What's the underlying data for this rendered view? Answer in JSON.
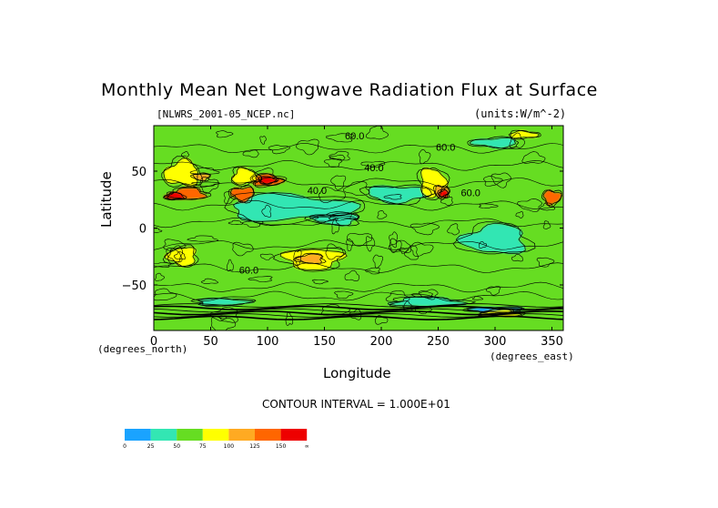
{
  "title": "Monthly Mean Net Longwave Radiation Flux at Surface",
  "file_label": "[NLWRS_2001-05_NCEP.nc]",
  "units_label": "(units:W/m^-2)",
  "contour_interval": "CONTOUR INTERVAL = 1.000E+01",
  "chart_data": {
    "type": "heatmap",
    "title": "Monthly Mean Net Longwave Radiation Flux at Surface",
    "xlabel": "Longitude",
    "ylabel": "Latitude",
    "x_unit_label": "(degrees_east)",
    "y_unit_label": "(degrees_north)",
    "xlim": [
      0,
      360
    ],
    "ylim": [
      -90,
      90
    ],
    "x_ticks": [
      0,
      50,
      100,
      150,
      200,
      250,
      300,
      350
    ],
    "x_tick_labels": [
      "0",
      "50",
      "100",
      "150",
      "200",
      "250",
      "300",
      "350"
    ],
    "y_ticks": [
      50,
      0,
      -50
    ],
    "y_tick_labels": [
      "50",
      "0",
      "−50"
    ],
    "contour_labels": [
      {
        "text": "60.0",
        "lon": 168,
        "lat": 78
      },
      {
        "text": "60.0",
        "lon": 248,
        "lat": 68
      },
      {
        "text": "40.0",
        "lon": 185,
        "lat": 50
      },
      {
        "text": "40.0",
        "lon": 135,
        "lat": 30
      },
      {
        "text": "60.0",
        "lon": 75,
        "lat": -40
      },
      {
        "text": "60.0",
        "lon": 270,
        "lat": 28
      }
    ],
    "colorbar": {
      "levels": [
        "0",
        "25",
        "50",
        "75",
        "100",
        "125",
        "150",
        "∞"
      ],
      "colors": [
        "#1aa3ff",
        "#33e6b3",
        "#66dd22",
        "#ffff00",
        "#ffaa22",
        "#ff6600",
        "#ee0000"
      ]
    },
    "field_regions": [
      {
        "kind": "background",
        "value": 55,
        "color": "#66dd22"
      },
      {
        "kind": "blob",
        "lon": 120,
        "lat": 18,
        "w": 110,
        "h": 22,
        "value": 35,
        "color": "#33e6b3"
      },
      {
        "kind": "blob",
        "lon": 215,
        "lat": 30,
        "w": 55,
        "h": 14,
        "value": 35,
        "color": "#33e6b3"
      },
      {
        "kind": "blob",
        "lon": 160,
        "lat": 8,
        "w": 40,
        "h": 10,
        "value": 35,
        "color": "#33e6b3"
      },
      {
        "kind": "blob",
        "lon": 300,
        "lat": -10,
        "w": 55,
        "h": 25,
        "value": 35,
        "color": "#33e6b3"
      },
      {
        "kind": "blob",
        "lon": 240,
        "lat": -65,
        "w": 60,
        "h": 8,
        "value": 35,
        "color": "#33e6b3"
      },
      {
        "kind": "blob",
        "lon": 60,
        "lat": -65,
        "w": 45,
        "h": 6,
        "value": 35,
        "color": "#33e6b3"
      },
      {
        "kind": "blob",
        "lon": 300,
        "lat": -72,
        "w": 45,
        "h": 5,
        "value": 20,
        "color": "#1aa3ff"
      },
      {
        "kind": "blob",
        "lon": 300,
        "lat": 75,
        "w": 40,
        "h": 8,
        "value": 35,
        "color": "#33e6b3"
      },
      {
        "kind": "blob",
        "lon": 25,
        "lat": 48,
        "w": 30,
        "h": 22,
        "value": 80,
        "color": "#ffff00"
      },
      {
        "kind": "blob",
        "lon": 80,
        "lat": 45,
        "w": 22,
        "h": 14,
        "value": 80,
        "color": "#ffff00"
      },
      {
        "kind": "blob",
        "lon": 245,
        "lat": 40,
        "w": 22,
        "h": 25,
        "value": 90,
        "color": "#ffff00"
      },
      {
        "kind": "blob",
        "lon": 140,
        "lat": -27,
        "w": 50,
        "h": 18,
        "value": 80,
        "color": "#ffff00"
      },
      {
        "kind": "blob",
        "lon": 25,
        "lat": -25,
        "w": 25,
        "h": 16,
        "value": 80,
        "color": "#ffff00"
      },
      {
        "kind": "blob",
        "lon": 305,
        "lat": -75,
        "w": 35,
        "h": 6,
        "value": 80,
        "color": "#ffff00"
      },
      {
        "kind": "blob",
        "lon": 325,
        "lat": 82,
        "w": 25,
        "h": 6,
        "value": 80,
        "color": "#ffff00"
      },
      {
        "kind": "blob",
        "lon": 253,
        "lat": 32,
        "w": 12,
        "h": 10,
        "value": 120,
        "color": "#ffaa22"
      },
      {
        "kind": "blob",
        "lon": 42,
        "lat": 45,
        "w": 14,
        "h": 6,
        "value": 115,
        "color": "#ffaa22"
      },
      {
        "kind": "blob",
        "lon": 138,
        "lat": -27,
        "w": 22,
        "h": 8,
        "value": 110,
        "color": "#ffaa22"
      },
      {
        "kind": "blob",
        "lon": 30,
        "lat": 30,
        "w": 30,
        "h": 10,
        "value": 130,
        "color": "#ff6600"
      },
      {
        "kind": "blob",
        "lon": 100,
        "lat": 42,
        "w": 25,
        "h": 10,
        "value": 130,
        "color": "#ff6600"
      },
      {
        "kind": "blob",
        "lon": 350,
        "lat": 27,
        "w": 15,
        "h": 12,
        "value": 130,
        "color": "#ff6600"
      },
      {
        "kind": "blob",
        "lon": 78,
        "lat": 30,
        "w": 20,
        "h": 12,
        "value": 130,
        "color": "#ff6600"
      },
      {
        "kind": "blob",
        "lon": 255,
        "lat": 30,
        "w": 8,
        "h": 6,
        "value": 160,
        "color": "#ee0000"
      },
      {
        "kind": "blob",
        "lon": 18,
        "lat": 28,
        "w": 16,
        "h": 6,
        "value": 160,
        "color": "#ee0000"
      },
      {
        "kind": "blob",
        "lon": 100,
        "lat": 42,
        "w": 14,
        "h": 6,
        "value": 160,
        "color": "#ee0000"
      }
    ]
  }
}
